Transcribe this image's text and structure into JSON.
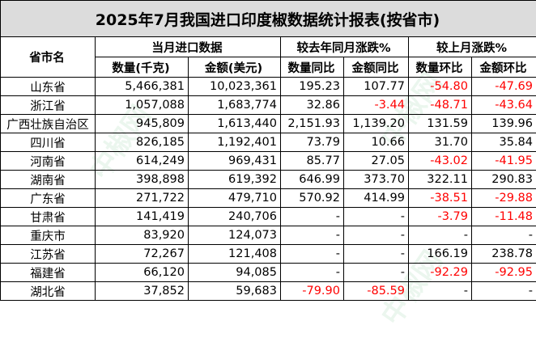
{
  "title": "2025年7月我国进口印度椒数据统计报表(按省市)",
  "headers": {
    "province": "省市名",
    "current_month": "当月进口数据",
    "yoy": "较去年同月涨跌%",
    "mom": "较上月涨跌%",
    "qty": "数量(千克)",
    "amount": "金额(美元)",
    "qty_yoy": "数量同比",
    "amt_yoy": "金额同比",
    "qty_mom": "数量环比",
    "amt_mom": "金额环比"
  },
  "rows": [
    [
      "山东省",
      "5,466,381",
      "10,023,361",
      "195.23",
      "107.77",
      "-54.80",
      "-47.69"
    ],
    [
      "浙江省",
      "1,057,088",
      "1,683,774",
      "32.86",
      "-3.44",
      "-48.71",
      "-43.64"
    ],
    [
      "广西壮族自治区",
      "945,809",
      "1,613,440",
      "2,151.93",
      "1,139.20",
      "131.59",
      "139.96"
    ],
    [
      "四川省",
      "826,185",
      "1,192,401",
      "73.79",
      "10.66",
      "31.70",
      "35.84"
    ],
    [
      "河南省",
      "614,249",
      "969,431",
      "85.77",
      "27.05",
      "-43.02",
      "-41.95"
    ],
    [
      "湖南省",
      "398,898",
      "619,392",
      "646.99",
      "373.70",
      "322.11",
      "290.83"
    ],
    [
      "广东省",
      "271,722",
      "479,710",
      "570.92",
      "414.99",
      "-38.51",
      "-29.88"
    ],
    [
      "甘肃省",
      "141,419",
      "240,706",
      "-",
      "-",
      "-3.79",
      "-11.48"
    ],
    [
      "重庆市",
      "83,920",
      "124,073",
      "-",
      "-",
      "-",
      "-"
    ],
    [
      "江苏省",
      "72,267",
      "121,408",
      "-",
      "-",
      "166.19",
      "238.78"
    ],
    [
      "福建省",
      "66,120",
      "94,085",
      "-",
      "-",
      "-92.29",
      "-92.95"
    ],
    [
      "湖北省",
      "37,852",
      "59,683",
      "-79.90",
      "-85.59",
      "-",
      "-"
    ]
  ],
  "watermark": "中椒网",
  "negative_color": "#ff0000"
}
